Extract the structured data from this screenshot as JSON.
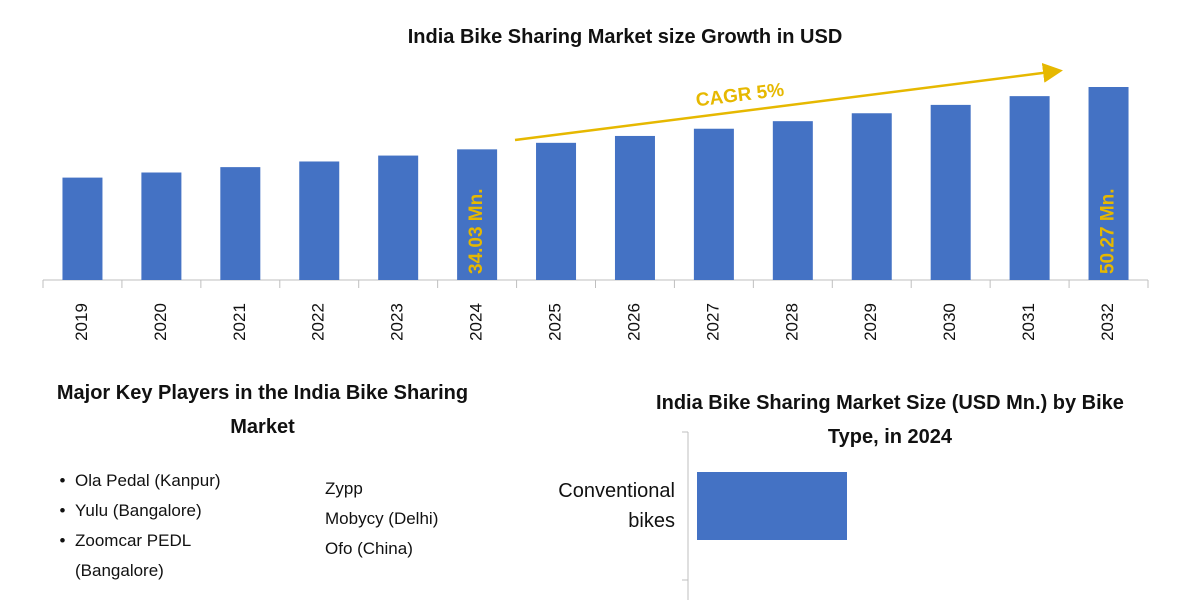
{
  "chart_data": [
    {
      "type": "bar",
      "orientation": "vertical",
      "title": "India Bike Sharing Market size Growth in USD",
      "categories": [
        "2019",
        "2020",
        "2021",
        "2022",
        "2023",
        "2024",
        "2025",
        "2026",
        "2027",
        "2028",
        "2029",
        "2030",
        "2031",
        "2032"
      ],
      "values": [
        26.67,
        28.0,
        29.4,
        30.87,
        32.41,
        34.03,
        35.73,
        37.52,
        39.4,
        41.37,
        43.43,
        45.61,
        47.89,
        50.27
      ],
      "value_labels": [
        null,
        null,
        null,
        null,
        null,
        "34.03 Mn.",
        null,
        null,
        null,
        null,
        null,
        null,
        null,
        "50.27 Mn."
      ],
      "color": "#4472c4",
      "label_color": "#e6b800",
      "annotation": "CAGR 5%"
    },
    {
      "type": "bar",
      "orientation": "horizontal",
      "title": "India Bike Sharing Market Size (USD Mn.) by Bike Type, in 2024",
      "categories": [
        "Conventional bikes"
      ],
      "values": [
        20
      ],
      "color": "#4472c4"
    }
  ],
  "key_players": {
    "title": "Major Key Players in the India Bike Sharing Market",
    "columns": [
      [
        "Ola Pedal (Kanpur)",
        "Yulu (Bangalore)",
        "Zoomcar PEDL (Bangalore)"
      ],
      [
        "Zypp",
        "Mobycy (Delhi)",
        "Ofo (China)"
      ]
    ]
  }
}
